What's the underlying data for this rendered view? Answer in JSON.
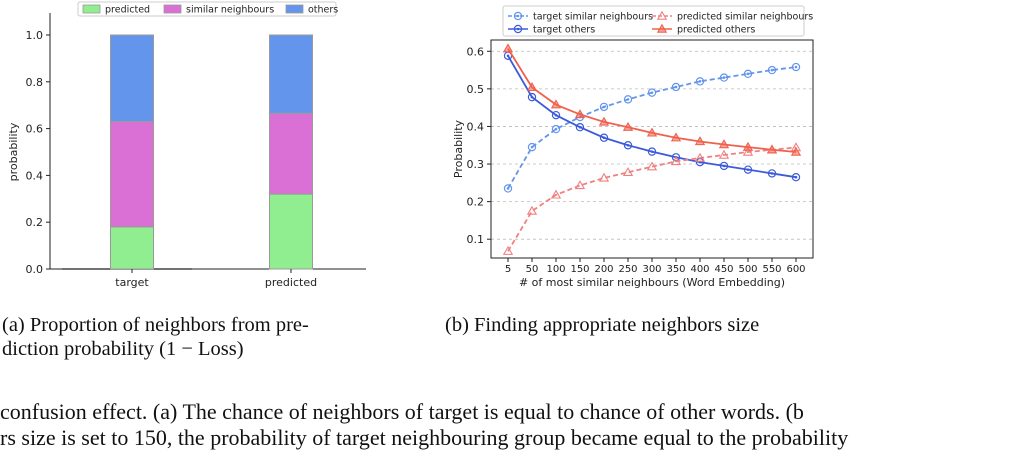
{
  "chart_data": [
    {
      "type": "bar",
      "stacked": true,
      "categories": [
        "target",
        "predicted"
      ],
      "ylabel": "probability",
      "ylim": [
        0,
        1.0
      ],
      "yticks": [
        "0.0",
        "0.2",
        "0.4",
        "0.6",
        "0.8",
        "1.0"
      ],
      "legend_position": "top",
      "series": [
        {
          "name": "predicted",
          "color": "#90ee90",
          "values": [
            0.18,
            0.32
          ]
        },
        {
          "name": "similar neighbours",
          "color": "#da70d6",
          "values": [
            0.45,
            0.345
          ]
        },
        {
          "name": "others",
          "color": "#6495ed",
          "values": [
            0.37,
            0.335
          ]
        }
      ]
    },
    {
      "type": "line",
      "x": [
        5,
        50,
        100,
        150,
        200,
        250,
        300,
        350,
        400,
        450,
        500,
        550,
        600
      ],
      "xlabel": "# of most similar neighbours (Word Embedding)",
      "ylabel": "Probability",
      "ylim": [
        0.05,
        0.63
      ],
      "yticks": [
        "0.1",
        "0.2",
        "0.3",
        "0.4",
        "0.5",
        "0.6"
      ],
      "grid": true,
      "legend_position": "top",
      "series": [
        {
          "name": "target similar neighbours",
          "color": "#6495ed",
          "style": "dashed",
          "marker": "circle",
          "values": [
            0.235,
            0.345,
            0.393,
            0.425,
            0.452,
            0.472,
            0.49,
            0.505,
            0.52,
            0.53,
            0.54,
            0.55,
            0.558
          ]
        },
        {
          "name": "target others",
          "color": "#3b5bdb",
          "style": "solid",
          "marker": "circle",
          "values": [
            0.588,
            0.478,
            0.43,
            0.398,
            0.37,
            0.35,
            0.333,
            0.318,
            0.305,
            0.295,
            0.285,
            0.275,
            0.265
          ]
        },
        {
          "name": "predicted similar neighbours",
          "color": "#f08080",
          "style": "dashed",
          "marker": "triangle",
          "values": [
            0.068,
            0.175,
            0.218,
            0.243,
            0.263,
            0.278,
            0.293,
            0.307,
            0.316,
            0.324,
            0.332,
            0.338,
            0.344
          ]
        },
        {
          "name": "predicted others",
          "color": "#f0604d",
          "style": "solid",
          "marker": "triangle",
          "values": [
            0.607,
            0.504,
            0.458,
            0.432,
            0.412,
            0.398,
            0.383,
            0.37,
            0.36,
            0.352,
            0.345,
            0.338,
            0.332
          ]
        }
      ]
    }
  ],
  "captions": {
    "a_line1": "(a) Proportion of neighbors from pre-",
    "a_line2": "diction probability (1 − Loss)",
    "b": "(b) Finding appropriate neighbors size"
  },
  "body_text": {
    "line1": "confusion effect.  (a) The chance of neighbors of target is equal to chance of other words.  (b",
    "line2": "rs size is set to 150, the probability of target neighbouring group became equal to the probability"
  }
}
